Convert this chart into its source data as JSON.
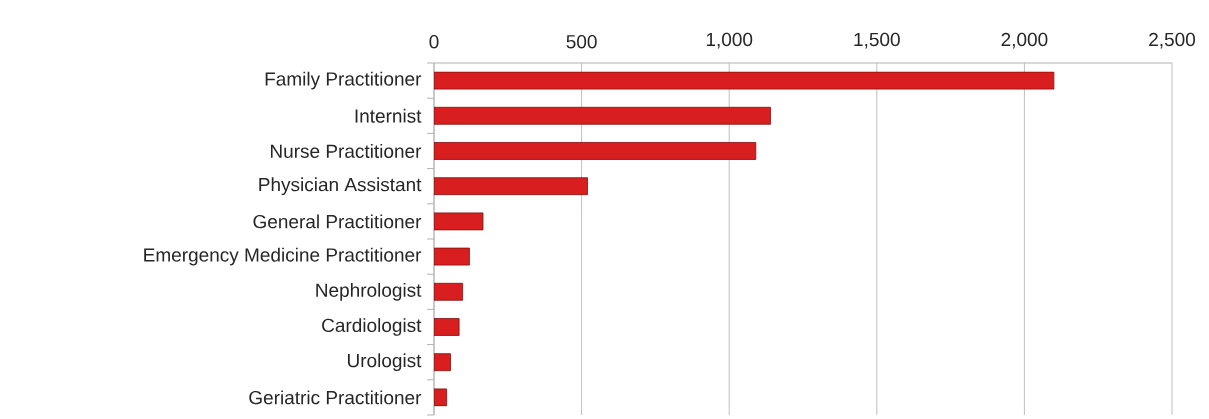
{
  "chart_data": {
    "type": "bar",
    "orientation": "horizontal",
    "categories": [
      "Family Practitioner",
      "Internist",
      "Nurse Practitioner",
      "Physician Assistant",
      "General Practitioner",
      "Emergency Medicine Practitioner",
      "Nephrologist",
      "Cardiologist",
      "Urologist",
      "Geriatric Practitioner"
    ],
    "values": [
      2100,
      1140,
      1090,
      520,
      166,
      120,
      97,
      85,
      56,
      43
    ],
    "color": "#d81e1e",
    "xlim": [
      0,
      2500
    ],
    "xticks": [
      0,
      {
        "value": 500,
        "label": "500"
      },
      {
        "value": 1000,
        "label": "1,000"
      },
      {
        "value": 1500,
        "label": "1,500"
      },
      {
        "value": 2000,
        "label": "2,000"
      },
      {
        "value": 2500,
        "label": "2,500"
      }
    ],
    "grid": "x"
  }
}
